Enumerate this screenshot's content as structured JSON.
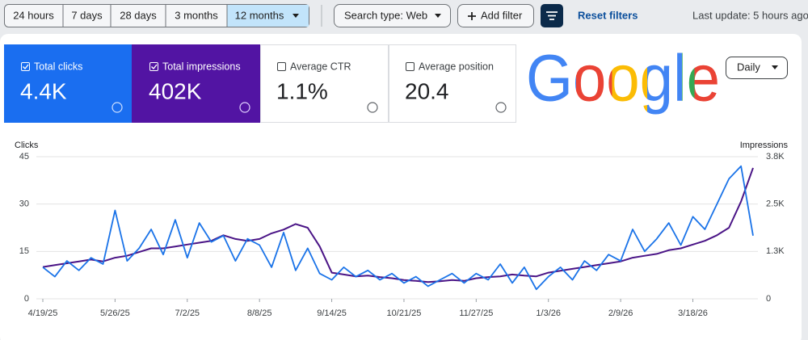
{
  "toolbar": {
    "ranges": [
      "24 hours",
      "7 days",
      "28 days",
      "3 months",
      "12 months"
    ],
    "search_type": "Search type: Web",
    "add_filter": "Add filter",
    "reset": "Reset filters",
    "last_update": "Last update: 5 hours ago"
  },
  "metrics": [
    {
      "label": "Total clicks",
      "value": "4.4K"
    },
    {
      "label": "Total impressions",
      "value": "402K"
    },
    {
      "label": "Average CTR",
      "value": "1.1%"
    },
    {
      "label": "Average position",
      "value": "20.4"
    }
  ],
  "logo": "Google",
  "interval": "Daily",
  "chart_data": {
    "type": "line",
    "categories": [
      "4/19/25",
      null,
      null,
      null,
      null,
      null,
      "5/26/25",
      null,
      null,
      null,
      null,
      null,
      "7/2/25",
      null,
      null,
      null,
      null,
      null,
      "8/8/25",
      null,
      null,
      null,
      null,
      null,
      "9/14/25",
      null,
      null,
      null,
      null,
      null,
      "10/21/25",
      null,
      null,
      null,
      null,
      null,
      "11/27/25",
      null,
      null,
      null,
      null,
      null,
      "1/3/26",
      null,
      null,
      null,
      null,
      null,
      "2/9/26",
      null,
      null,
      null,
      null,
      null,
      "3/18/26",
      null,
      null,
      null,
      null,
      null
    ],
    "series": [
      {
        "name": "Clicks",
        "color": "#1a73e8",
        "values": [
          10,
          7,
          12,
          9,
          13,
          11,
          28,
          12,
          16,
          22,
          14,
          25,
          13,
          24,
          18,
          20,
          12,
          19,
          17,
          10,
          21,
          9,
          16,
          8,
          6,
          10,
          7,
          9,
          6,
          8,
          5,
          7,
          4,
          6,
          8,
          5,
          8,
          6,
          11,
          5,
          10,
          3,
          7,
          10,
          6,
          12,
          9,
          14,
          12,
          22,
          15,
          19,
          24,
          17,
          26,
          22,
          30,
          38,
          42,
          20
        ]
      },
      {
        "name": "Impressions",
        "color": "#4a1486",
        "axis": "y2",
        "values": [
          850,
          900,
          950,
          1000,
          1050,
          1000,
          1100,
          1150,
          1250,
          1350,
          1350,
          1400,
          1450,
          1500,
          1550,
          1700,
          1600,
          1550,
          1600,
          1750,
          1850,
          2000,
          1900,
          1400,
          700,
          650,
          600,
          620,
          580,
          550,
          500,
          480,
          450,
          470,
          500,
          480,
          550,
          580,
          600,
          650,
          620,
          600,
          700,
          750,
          800,
          850,
          900,
          950,
          1000,
          1100,
          1150,
          1200,
          1300,
          1350,
          1450,
          1550,
          1700,
          1900,
          2600,
          3500
        ]
      }
    ],
    "ylim": [
      0,
      45
    ],
    "yticks": [
      0,
      15,
      30,
      45
    ],
    "y2lim": [
      0,
      3800
    ],
    "y2ticks": [
      0,
      {
        "value": 1267,
        "label": "1.3K"
      },
      {
        "value": 2533,
        "label": "2.5K"
      },
      {
        "value": 3800,
        "label": "3.8K"
      }
    ],
    "grid": true
  }
}
